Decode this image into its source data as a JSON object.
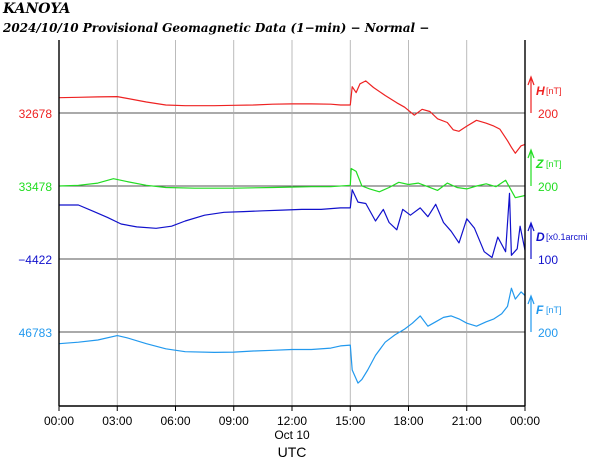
{
  "header": {
    "station": "KANOYA",
    "subtitle": "2024/10/10  Provisional Geomagnetic Data (1−min)  − Normal −"
  },
  "chart_data": {
    "type": "line",
    "x_ticks": [
      "00:00",
      "03:00",
      "06:00",
      "09:00",
      "12:00",
      "15:00",
      "18:00",
      "21:00",
      "00:00"
    ],
    "x_date_label": "Oct 10",
    "xlabel": "UTC",
    "x_range_hours": [
      0,
      24
    ],
    "grid": true,
    "series": [
      {
        "name": "H",
        "unit": "[nT]",
        "scale_label": "200",
        "base_label": "32678",
        "color": "#ee2222",
        "points": [
          [
            0,
            -21
          ],
          [
            1,
            -21.5
          ],
          [
            2,
            -22
          ],
          [
            3,
            -22.5
          ],
          [
            3.5,
            -20
          ],
          [
            4.5,
            -15
          ],
          [
            5.5,
            -11
          ],
          [
            6.5,
            -10
          ],
          [
            8,
            -10
          ],
          [
            9,
            -10.5
          ],
          [
            10,
            -11
          ],
          [
            11,
            -12
          ],
          [
            12,
            -12.5
          ],
          [
            13,
            -12.5
          ],
          [
            14,
            -12
          ],
          [
            14.5,
            -11
          ],
          [
            15,
            -11
          ],
          [
            15.1,
            -36
          ],
          [
            15.3,
            -28
          ],
          [
            15.5,
            -40
          ],
          [
            15.8,
            -44
          ],
          [
            16.2,
            -35
          ],
          [
            16.8,
            -24
          ],
          [
            17.4,
            -14
          ],
          [
            17.8,
            -8
          ],
          [
            18.3,
            3
          ],
          [
            18.7,
            -5
          ],
          [
            19.1,
            -2
          ],
          [
            19.5,
            8
          ],
          [
            20,
            13
          ],
          [
            20.3,
            23
          ],
          [
            20.6,
            25
          ],
          [
            21,
            18
          ],
          [
            21.5,
            10
          ],
          [
            22,
            14
          ],
          [
            22.4,
            18
          ],
          [
            22.7,
            22
          ],
          [
            23.1,
            38
          ],
          [
            23.3,
            47
          ],
          [
            23.5,
            55
          ],
          [
            23.8,
            45
          ],
          [
            24,
            43
          ]
        ]
      },
      {
        "name": "Z",
        "unit": "[nT]",
        "scale_label": "200",
        "base_label": "33478",
        "color": "#22dd22",
        "points": [
          [
            0,
            0
          ],
          [
            1,
            -1
          ],
          [
            2,
            -4
          ],
          [
            2.8,
            -10
          ],
          [
            3.5,
            -6
          ],
          [
            4.5,
            -1
          ],
          [
            5.5,
            2
          ],
          [
            7,
            3
          ],
          [
            9,
            3
          ],
          [
            11,
            2
          ],
          [
            13,
            1
          ],
          [
            14,
            1
          ],
          [
            15,
            -1
          ],
          [
            15.05,
            -24
          ],
          [
            15.3,
            -20
          ],
          [
            15.6,
            0
          ],
          [
            16,
            4
          ],
          [
            16.5,
            8
          ],
          [
            17,
            2
          ],
          [
            17.5,
            -5
          ],
          [
            18,
            -2
          ],
          [
            18.5,
            -4
          ],
          [
            19,
            1
          ],
          [
            19.5,
            6
          ],
          [
            20,
            -4
          ],
          [
            20.5,
            2
          ],
          [
            21,
            4
          ],
          [
            21.5,
            0
          ],
          [
            22,
            -3
          ],
          [
            22.5,
            1
          ],
          [
            23,
            -8
          ],
          [
            23.5,
            16
          ],
          [
            24,
            13
          ]
        ]
      },
      {
        "name": "D",
        "unit": "[x0.1arcmi",
        "scale_label": "100",
        "base_label": "−4422",
        "color": "#1111cc",
        "points": [
          [
            0,
            -74
          ],
          [
            1,
            -74
          ],
          [
            1.8,
            -65
          ],
          [
            2.5,
            -57
          ],
          [
            3.2,
            -48
          ],
          [
            4,
            -44
          ],
          [
            5,
            -42
          ],
          [
            5.8,
            -45
          ],
          [
            6.5,
            -52
          ],
          [
            7.5,
            -60
          ],
          [
            8.5,
            -64
          ],
          [
            9.5,
            -65
          ],
          [
            10.5,
            -66
          ],
          [
            11.5,
            -67
          ],
          [
            12.5,
            -68
          ],
          [
            13.5,
            -68
          ],
          [
            14.5,
            -70
          ],
          [
            15,
            -70
          ],
          [
            15.1,
            -95
          ],
          [
            15.4,
            -78
          ],
          [
            15.8,
            -76
          ],
          [
            16.3,
            -52
          ],
          [
            16.7,
            -68
          ],
          [
            17,
            -50
          ],
          [
            17.4,
            -40
          ],
          [
            17.7,
            -68
          ],
          [
            18.1,
            -60
          ],
          [
            18.6,
            -70
          ],
          [
            19,
            -58
          ],
          [
            19.4,
            -75
          ],
          [
            19.8,
            -50
          ],
          [
            20.2,
            -38
          ],
          [
            20.6,
            -22
          ],
          [
            21,
            -55
          ],
          [
            21.4,
            -42
          ],
          [
            21.9,
            -10
          ],
          [
            22.3,
            -2
          ],
          [
            22.6,
            -30
          ],
          [
            23,
            -10
          ],
          [
            23.2,
            -90
          ],
          [
            23.3,
            -5
          ],
          [
            23.6,
            -14
          ],
          [
            23.75,
            -45
          ],
          [
            24,
            -12
          ]
        ]
      },
      {
        "name": "F",
        "unit": "[nT]",
        "scale_label": "200",
        "base_label": "46783",
        "color": "#2299ee",
        "points": [
          [
            0,
            16
          ],
          [
            1,
            14
          ],
          [
            2,
            11
          ],
          [
            3,
            5
          ],
          [
            3.5,
            8
          ],
          [
            4.5,
            16
          ],
          [
            5.5,
            23
          ],
          [
            6.5,
            27
          ],
          [
            8,
            28
          ],
          [
            9,
            27.5
          ],
          [
            10,
            26
          ],
          [
            11,
            25
          ],
          [
            12,
            24
          ],
          [
            13,
            24
          ],
          [
            14,
            22
          ],
          [
            14.5,
            19
          ],
          [
            15,
            18
          ],
          [
            15.1,
            52
          ],
          [
            15.4,
            70
          ],
          [
            15.6,
            65
          ],
          [
            15.9,
            52
          ],
          [
            16.3,
            32
          ],
          [
            16.8,
            14
          ],
          [
            17.3,
            4
          ],
          [
            17.8,
            -4
          ],
          [
            18.2,
            -12
          ],
          [
            18.6,
            -22
          ],
          [
            19,
            -8
          ],
          [
            19.4,
            -14
          ],
          [
            19.8,
            -20
          ],
          [
            20.2,
            -22
          ],
          [
            20.6,
            -18
          ],
          [
            21,
            -12
          ],
          [
            21.5,
            -8
          ],
          [
            22,
            -14
          ],
          [
            22.4,
            -18
          ],
          [
            22.8,
            -25
          ],
          [
            23.1,
            -35
          ],
          [
            23.3,
            -60
          ],
          [
            23.5,
            -45
          ],
          [
            23.8,
            -55
          ],
          [
            24,
            -50
          ]
        ]
      }
    ]
  }
}
